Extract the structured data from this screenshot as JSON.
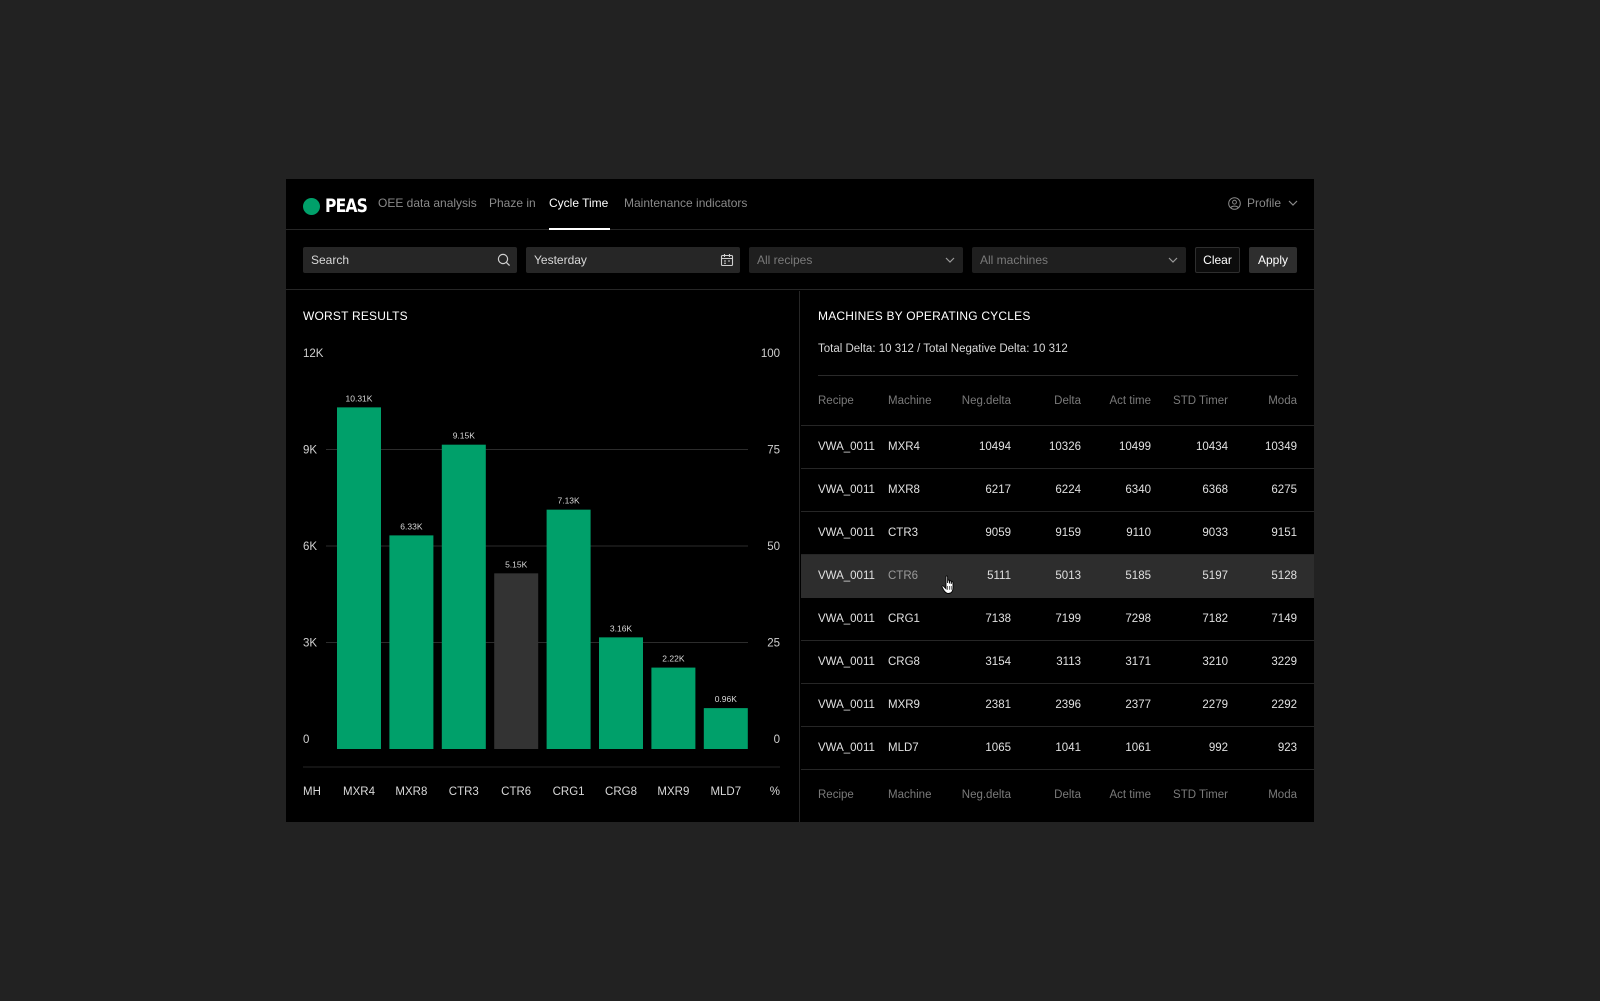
{
  "app": {
    "logo_text": "PEAS",
    "brand_color": "#00A06A",
    "nav": [
      {
        "label": "OEE data analysis",
        "active": false
      },
      {
        "label": "Phaze in",
        "active": false
      },
      {
        "label": "Cycle Time",
        "active": true
      },
      {
        "label": "Maintenance indicators",
        "active": false
      }
    ],
    "profile_label": "Profile"
  },
  "filters": {
    "search_placeholder": "Search",
    "date_value": "Yesterday",
    "recipes_placeholder": "All recipes",
    "machines_placeholder": "All machines",
    "clear_label": "Clear",
    "apply_label": "Apply"
  },
  "worst_results": {
    "title": "WORST RESULTS",
    "chart_data": {
      "type": "bar",
      "categories": [
        "MXR4",
        "MXR8",
        "CTR3",
        "CTR6",
        "CRG1",
        "CRG8",
        "MXR9",
        "MLD7"
      ],
      "values": [
        10310,
        6330,
        9150,
        5150,
        7130,
        3160,
        2220,
        960
      ],
      "value_labels": [
        "10.31K",
        "6.33K",
        "9.15K",
        "5.15K",
        "7.13K",
        "3.16K",
        "2.22K",
        "0.96K"
      ],
      "highlighted_index": 3,
      "bar_color": "#00A06A",
      "highlight_color": "#333333",
      "y_left": {
        "ticks": [
          "0",
          "3K",
          "6K",
          "9K",
          "12K"
        ],
        "range": [
          0,
          12000
        ]
      },
      "y_right": {
        "ticks": [
          "0",
          "25",
          "50",
          "75",
          "100"
        ],
        "range": [
          0,
          100
        ]
      },
      "x_left_label": "MH",
      "x_right_label": "%",
      "grid": true
    }
  },
  "machines": {
    "title": "MACHINES BY OPERATING CYCLES",
    "summary": "Total Delta: 10 312 / Total Negative Delta: 10 312",
    "columns": [
      "Recipe",
      "Machine",
      "Neg.delta",
      "Delta",
      "Act time",
      "STD Timer",
      "Moda"
    ],
    "rows": [
      [
        "VWA_0011",
        "MXR4",
        "10494",
        "10326",
        "10499",
        "10434",
        "10349"
      ],
      [
        "VWA_0011",
        "MXR8",
        "6217",
        "6224",
        "6340",
        "6368",
        "6275"
      ],
      [
        "VWA_0011",
        "CTR3",
        "9059",
        "9159",
        "9110",
        "9033",
        "9151"
      ],
      [
        "VWA_0011",
        "CTR6",
        "5111",
        "5013",
        "5185",
        "5197",
        "5128"
      ],
      [
        "VWA_0011",
        "CRG1",
        "7138",
        "7199",
        "7298",
        "7182",
        "7149"
      ],
      [
        "VWA_0011",
        "CRG8",
        "3154",
        "3113",
        "3171",
        "3210",
        "3229"
      ],
      [
        "VWA_0011",
        "MXR9",
        "2381",
        "2396",
        "2377",
        "2279",
        "2292"
      ],
      [
        "VWA_0011",
        "MLD7",
        "1065",
        "1041",
        "1061",
        "992",
        "923"
      ]
    ],
    "highlighted_row": 3
  }
}
